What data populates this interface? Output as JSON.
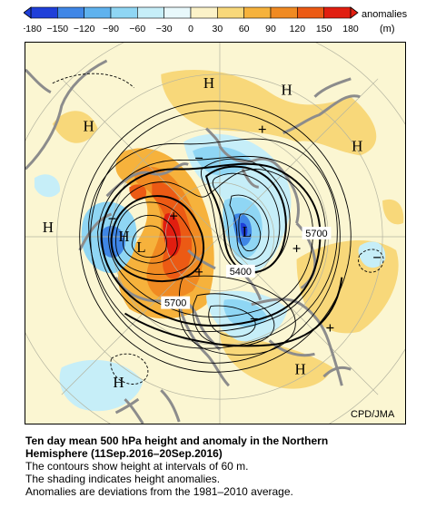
{
  "colorbar": {
    "ticks": [
      "-180",
      "-150",
      "-120",
      "-90",
      "-60",
      "-30",
      "0",
      "30",
      "60",
      "90",
      "120",
      "150",
      "180"
    ],
    "colors": [
      "#1f3fd9",
      "#3f86e6",
      "#5fb2ee",
      "#8fd6f4",
      "#c6eef8",
      "#e8f8fb",
      "#fbf2c8",
      "#f8d87a",
      "#f6b23c",
      "#f08a22",
      "#ec5a14",
      "#e11e10"
    ],
    "label_1": "anomalies",
    "label_2": "(m)"
  },
  "map": {
    "high_labels": [
      "H",
      "H",
      "H",
      "H",
      "H",
      "H",
      "H",
      "H"
    ],
    "low_labels": [
      "L",
      "L"
    ],
    "contour_labels": [
      "5700",
      "5400",
      "5700"
    ],
    "colors": {
      "ocean": "#fbf6d2",
      "land_outline": "#8c8c8c",
      "warm_light": "#f8d87a",
      "warm_mid": "#f6b23c",
      "warm_strong": "#ec5a14",
      "warm_max": "#e11e10",
      "cool_light": "#c6eef8",
      "cool_mid": "#8fd6f4",
      "cool_strong": "#3f86e6",
      "cool_max": "#1f3fd9"
    }
  },
  "credit": "CPD/JMA",
  "caption": {
    "title_line1": "Ten day mean 500 hPa height and anomaly in the Northern",
    "title_line2": "Hemisphere (11Sep.2016–20Sep.2016)",
    "line1": "The contours show height at intervals of 60 m.",
    "line2": "The shading indicates height anomalies.",
    "line3": "Anomalies are deviations from the 1981–2010 average."
  }
}
